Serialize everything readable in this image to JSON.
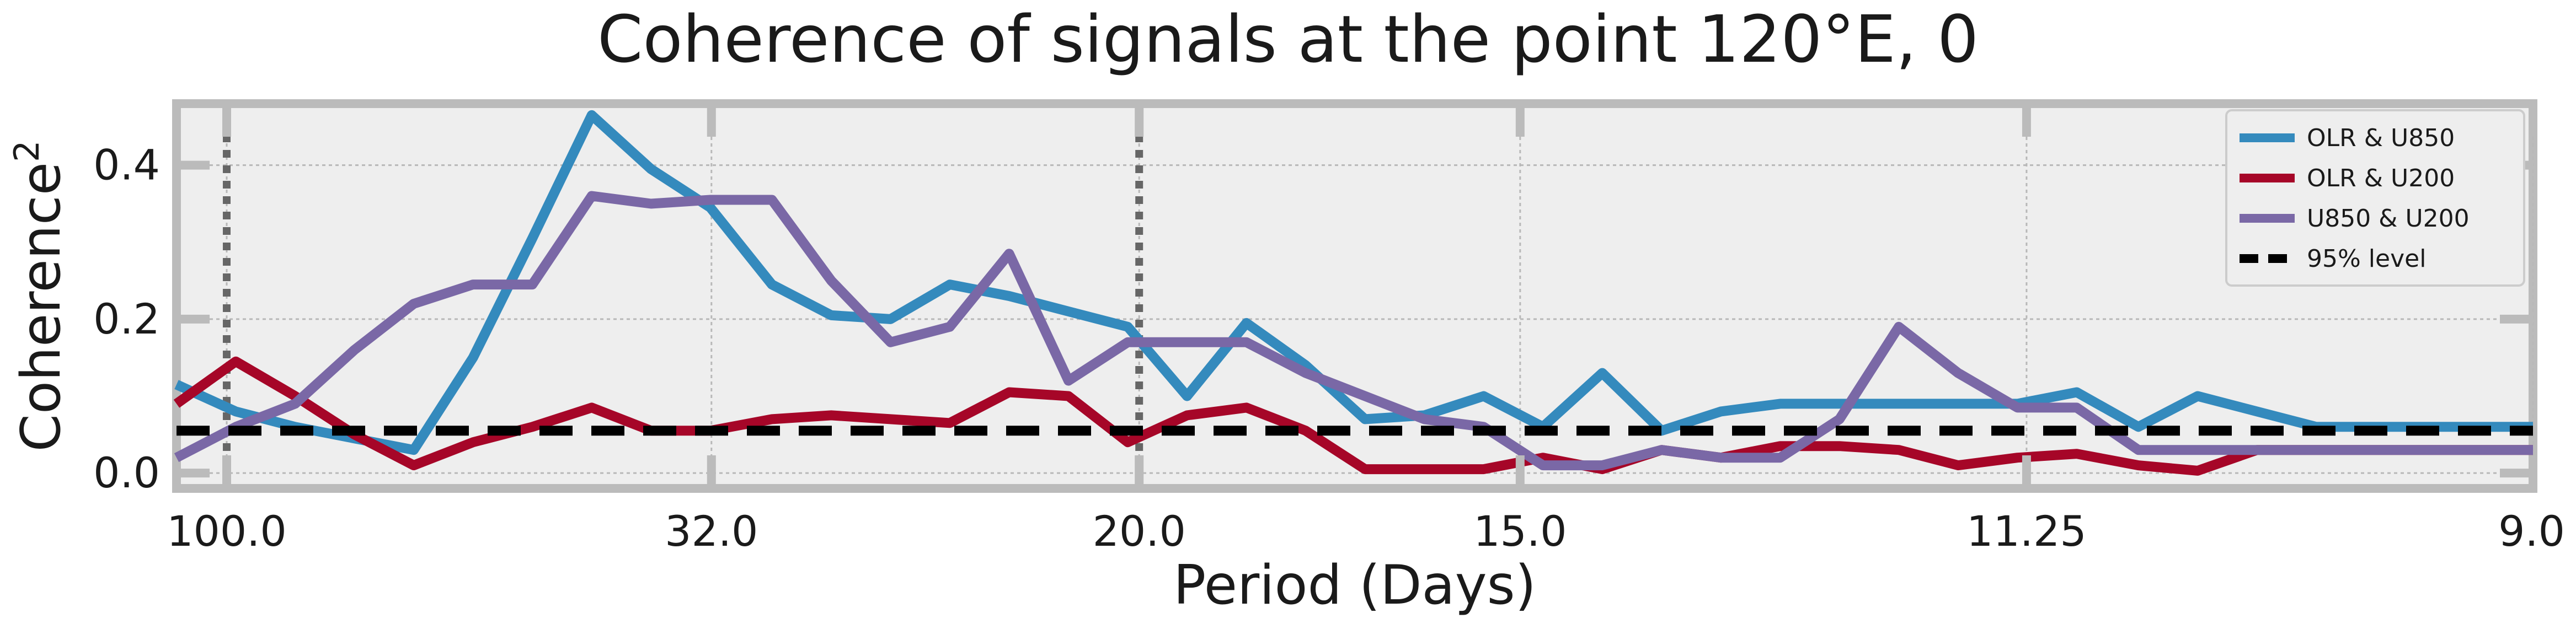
{
  "chart_data": {
    "type": "line",
    "title": "Coherence of signals at the point 120°E, 0",
    "xlabel": "Period (Days)",
    "ylabel": "Coherence",
    "ylabel_sup": "2",
    "xlim": [
      0.0078,
      0.1111
    ],
    "ylim": [
      -0.02,
      0.48
    ],
    "x_ticks": [
      {
        "value": 0.01,
        "label": "100.0"
      },
      {
        "value": 0.03125,
        "label": "32.0"
      },
      {
        "value": 0.05,
        "label": "20.0"
      },
      {
        "value": 0.0667,
        "label": "15.0"
      },
      {
        "value": 0.0889,
        "label": "11.25"
      },
      {
        "value": 0.1111,
        "label": "9.0"
      }
    ],
    "y_ticks": [
      {
        "value": 0.0,
        "label": "0.0"
      },
      {
        "value": 0.2,
        "label": "0.2"
      },
      {
        "value": 0.4,
        "label": "0.4"
      }
    ],
    "vlines": [
      0.01,
      0.05
    ],
    "grid": true,
    "legend_position": "top-right",
    "x": [
      0.0078,
      0.0104,
      0.013,
      0.0156,
      0.0182,
      0.0208,
      0.0234,
      0.026,
      0.0286,
      0.0312,
      0.0339,
      0.0365,
      0.0391,
      0.0417,
      0.0443,
      0.0469,
      0.0495,
      0.0521,
      0.0547,
      0.0573,
      0.0599,
      0.0625,
      0.0651,
      0.0677,
      0.0703,
      0.0729,
      0.0755,
      0.0781,
      0.0807,
      0.0833,
      0.0859,
      0.0885,
      0.0911,
      0.0938,
      0.0964,
      0.099,
      0.1016,
      0.1042,
      0.1068,
      0.1094,
      0.1111
    ],
    "series": [
      {
        "name": "OLR & U850",
        "color": "#348abd",
        "values": [
          0.115,
          0.08,
          0.06,
          0.045,
          0.03,
          0.15,
          0.305,
          0.465,
          0.395,
          0.345,
          0.245,
          0.205,
          0.2,
          0.245,
          0.23,
          0.21,
          0.19,
          0.1,
          0.195,
          0.14,
          0.07,
          0.075,
          0.1,
          0.06,
          0.13,
          0.055,
          0.08,
          0.09,
          0.09,
          0.09,
          0.09,
          0.09,
          0.105,
          0.06,
          0.1,
          0.08,
          0.06,
          0.06,
          0.06,
          0.06,
          0.06
        ]
      },
      {
        "name": "OLR & U200",
        "color": "#a60628",
        "values": [
          0.09,
          0.145,
          0.1,
          0.05,
          0.01,
          0.04,
          0.06,
          0.085,
          0.055,
          0.055,
          0.07,
          0.075,
          0.07,
          0.065,
          0.105,
          0.1,
          0.04,
          0.075,
          0.085,
          0.055,
          0.005,
          0.005,
          0.005,
          0.02,
          0.005,
          0.03,
          0.02,
          0.035,
          0.035,
          0.03,
          0.01,
          0.02,
          0.025,
          0.01,
          0.003,
          0.03,
          0.03,
          0.03,
          0.03,
          0.03,
          0.03
        ]
      },
      {
        "name": "U850 & U200",
        "color": "#7a68a6",
        "values": [
          0.02,
          0.06,
          0.09,
          0.16,
          0.22,
          0.245,
          0.245,
          0.36,
          0.35,
          0.355,
          0.355,
          0.25,
          0.17,
          0.19,
          0.285,
          0.12,
          0.17,
          0.17,
          0.17,
          0.13,
          0.1,
          0.07,
          0.06,
          0.01,
          0.01,
          0.03,
          0.02,
          0.02,
          0.07,
          0.19,
          0.13,
          0.085,
          0.085,
          0.03,
          0.03,
          0.03,
          0.03,
          0.03,
          0.03,
          0.03,
          0.03
        ]
      },
      {
        "name": "95% level",
        "color": "#000000",
        "dashed": true,
        "constant": 0.055
      }
    ]
  }
}
